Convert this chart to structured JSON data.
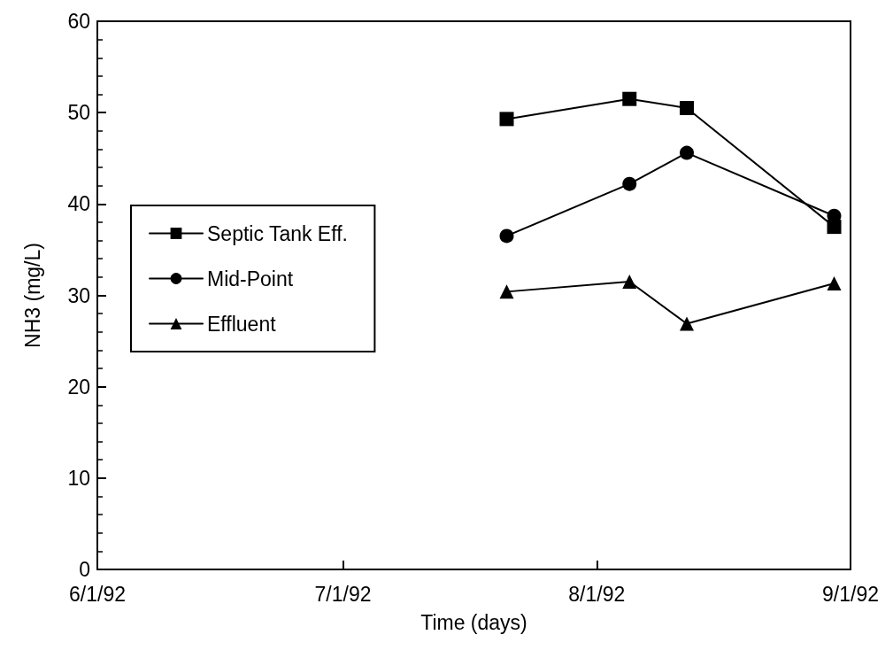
{
  "chart_data": {
    "type": "line",
    "xlabel": "Time (days)",
    "ylabel": "NH3 (mg/L)",
    "x": [
      "1992-07-21",
      "1992-08-05",
      "1992-08-12",
      "1992-08-30"
    ],
    "series": [
      {
        "name": "Septic Tank Eff.",
        "color": "#000000",
        "marker": "square",
        "values": [
          49.3,
          51.5,
          50.5,
          37.5
        ]
      },
      {
        "name": "Mid-Point",
        "color": "#000000",
        "marker": "circle",
        "values": [
          36.5,
          42.2,
          45.6,
          38.7
        ]
      },
      {
        "name": "Effluent",
        "color": "#000000",
        "marker": "triangle",
        "values": [
          30.4,
          31.5,
          26.9,
          31.3
        ]
      }
    ],
    "xlim": [
      "1992-06-01",
      "1992-09-01"
    ],
    "xticks": [
      {
        "value": "1992-06-01",
        "label": "6/1/92"
      },
      {
        "value": "1992-07-01",
        "label": "7/1/92"
      },
      {
        "value": "1992-08-01",
        "label": "8/1/92"
      },
      {
        "value": "1992-09-01",
        "label": "9/1/92"
      }
    ],
    "ylim": [
      0,
      60
    ],
    "yticks": [
      0,
      10,
      20,
      30,
      40,
      50,
      60
    ],
    "grid": false,
    "legend": "left",
    "line_style": "solid"
  }
}
